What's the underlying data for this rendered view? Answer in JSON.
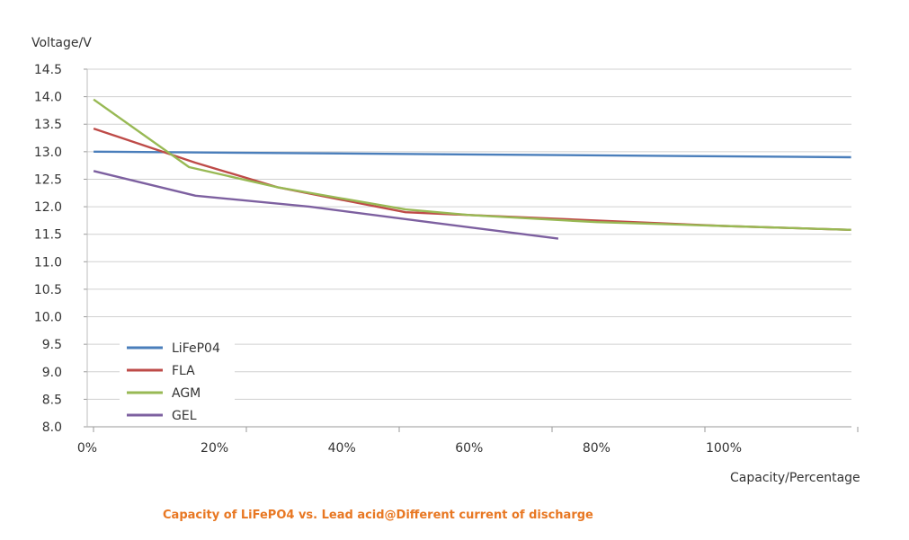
{
  "chart_data": {
    "type": "line",
    "ylabel": "Voltage/V",
    "xlabel": "Capacity/Percentage",
    "caption": "Capacity of LiFePO4 vs. Lead acid@Different current of discharge",
    "ylim": [
      8.0,
      14.5
    ],
    "yticks": [
      "8.0",
      "8.5",
      "9.0",
      "9.5",
      "10.0",
      "10.5",
      "11.0",
      "11.5",
      "12.0",
      "12.5",
      "13.0",
      "13.5",
      "14.0",
      "14.5"
    ],
    "xticks": [
      {
        "label": "0%",
        "at": 0
      },
      {
        "label": "20%",
        "at": 20
      },
      {
        "label": "40%",
        "at": 40
      },
      {
        "label": "60%",
        "at": 60
      },
      {
        "label": "80%",
        "at": 80
      },
      {
        "label": "100%",
        "at": 100
      }
    ],
    "grid": true,
    "legend_position": "bottom-left",
    "series": [
      {
        "name": "LiFeP04",
        "color": "#4a7ebb",
        "points": [
          [
            1,
            13.0
          ],
          [
            120,
            12.9
          ]
        ]
      },
      {
        "name": "FLA",
        "color": "#be4b48",
        "points": [
          [
            1,
            13.42
          ],
          [
            17,
            12.8
          ],
          [
            30,
            12.35
          ],
          [
            50,
            11.9
          ],
          [
            60,
            11.85
          ],
          [
            80,
            11.75
          ],
          [
            100,
            11.65
          ],
          [
            120,
            11.58
          ]
        ]
      },
      {
        "name": "AGM",
        "color": "#98b954",
        "points": [
          [
            1,
            13.95
          ],
          [
            16,
            12.72
          ],
          [
            30,
            12.35
          ],
          [
            50,
            11.95
          ],
          [
            60,
            11.85
          ],
          [
            80,
            11.72
          ],
          [
            100,
            11.65
          ],
          [
            120,
            11.58
          ]
        ]
      },
      {
        "name": "GEL",
        "color": "#7d60a0",
        "points": [
          [
            1,
            12.65
          ],
          [
            17,
            12.2
          ],
          [
            35,
            12.0
          ],
          [
            55,
            11.7
          ],
          [
            74,
            11.42
          ]
        ]
      }
    ]
  }
}
